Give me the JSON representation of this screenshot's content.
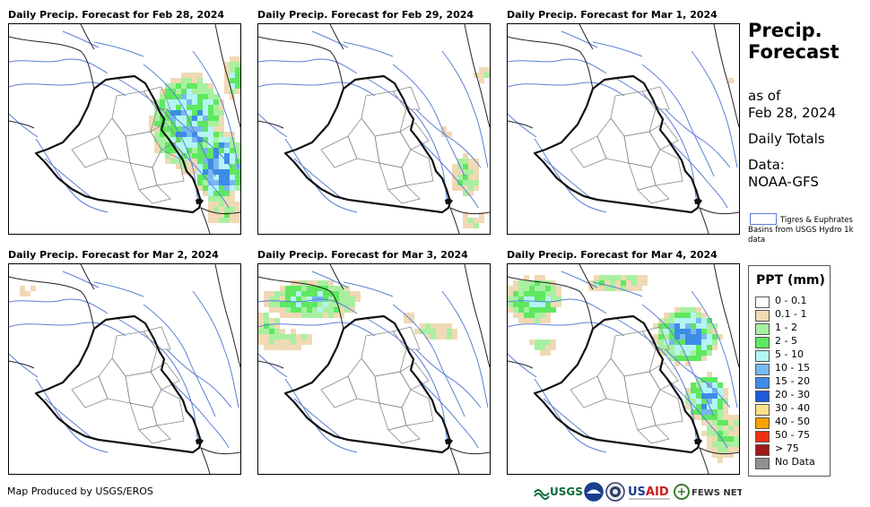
{
  "panels": [
    {
      "title": "Daily Precip. Forecast for Feb 28, 2024",
      "day": 0
    },
    {
      "title": "Daily Precip. Forecast for Feb 29, 2024",
      "day": 1
    },
    {
      "title": "Daily Precip. Forecast for Mar 1, 2024",
      "day": 2
    },
    {
      "title": "Daily Precip. Forecast for Mar 2, 2024",
      "day": 3
    },
    {
      "title": "Daily Precip. Forecast for Mar 3, 2024",
      "day": 4
    },
    {
      "title": "Daily Precip. Forecast for Mar 4, 2024",
      "day": 5
    }
  ],
  "sidebar": {
    "title_line1": "Precip.",
    "title_line2": "Forecast",
    "asof_line1": "as of",
    "asof_line2": "Feb 28, 2024",
    "totals": "Daily Totals",
    "data_line1": "Data:",
    "data_line2": "NOAA-GFS"
  },
  "basin_legend": {
    "text": "Tigres & Euphrates Basins from USGS Hydro 1k data",
    "color": "#5b7fd6"
  },
  "legend": {
    "title": "PPT (mm)",
    "items": [
      {
        "label": "0 - 0.1",
        "color": "#ffffff"
      },
      {
        "label": "0.1 - 1",
        "color": "#f0d9b5"
      },
      {
        "label": "1 - 2",
        "color": "#a8f0a0"
      },
      {
        "label": "2 - 5",
        "color": "#5ee860"
      },
      {
        "label": "5 - 10",
        "color": "#b4f4f4"
      },
      {
        "label": "10 - 15",
        "color": "#78b8f0"
      },
      {
        "label": "15 - 20",
        "color": "#3c8ce8"
      },
      {
        "label": "20 - 30",
        "color": "#1e5ad8"
      },
      {
        "label": "30 - 40",
        "color": "#f8e088"
      },
      {
        "label": "40 - 50",
        "color": "#f8a000"
      },
      {
        "label": "50 - 75",
        "color": "#f03010"
      },
      {
        "label": "> 75",
        "color": "#a01818"
      },
      {
        "label": "No Data",
        "color": "#909090"
      }
    ]
  },
  "credit": "Map Produced by USGS/EROS",
  "logos": {
    "usgs": "USGS",
    "usaid": "USAID",
    "fews": "FEWS NET"
  }
}
